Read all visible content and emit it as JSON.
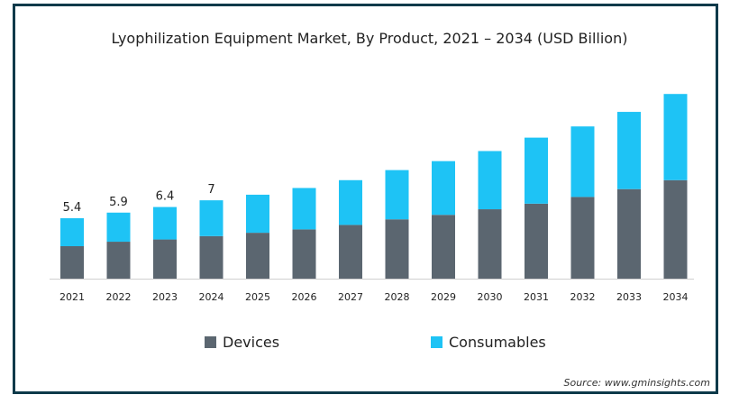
{
  "chart_data": {
    "type": "bar",
    "stacked": true,
    "title": "Lyophilization Equipment Market, By Product, 2021 – 2034 (USD Billion)",
    "categories": [
      "2021",
      "2022",
      "2023",
      "2024",
      "2025",
      "2026",
      "2027",
      "2028",
      "2029",
      "2030",
      "2031",
      "2032",
      "2033",
      "2034"
    ],
    "series": [
      {
        "name": "Devices",
        "color": "#5b6670",
        "values": [
          2.9,
          3.3,
          3.5,
          3.8,
          4.1,
          4.4,
          4.8,
          5.3,
          5.7,
          6.2,
          6.7,
          7.3,
          8.0,
          8.8
        ]
      },
      {
        "name": "Consumables",
        "color": "#1ec3f5",
        "values": [
          2.5,
          2.6,
          2.9,
          3.2,
          3.4,
          3.7,
          4.0,
          4.4,
          4.8,
          5.2,
          5.9,
          6.3,
          6.9,
          7.7
        ]
      }
    ],
    "data_labels": [
      "5.4",
      "5.9",
      "6.4",
      "7",
      "",
      "",
      "",
      "",
      "",
      "",
      "",
      "",
      "",
      ""
    ],
    "ylim": [
      0,
      17
    ],
    "grid": false,
    "legend_position": "bottom"
  },
  "source_text": "Source: www.gminsights.com"
}
